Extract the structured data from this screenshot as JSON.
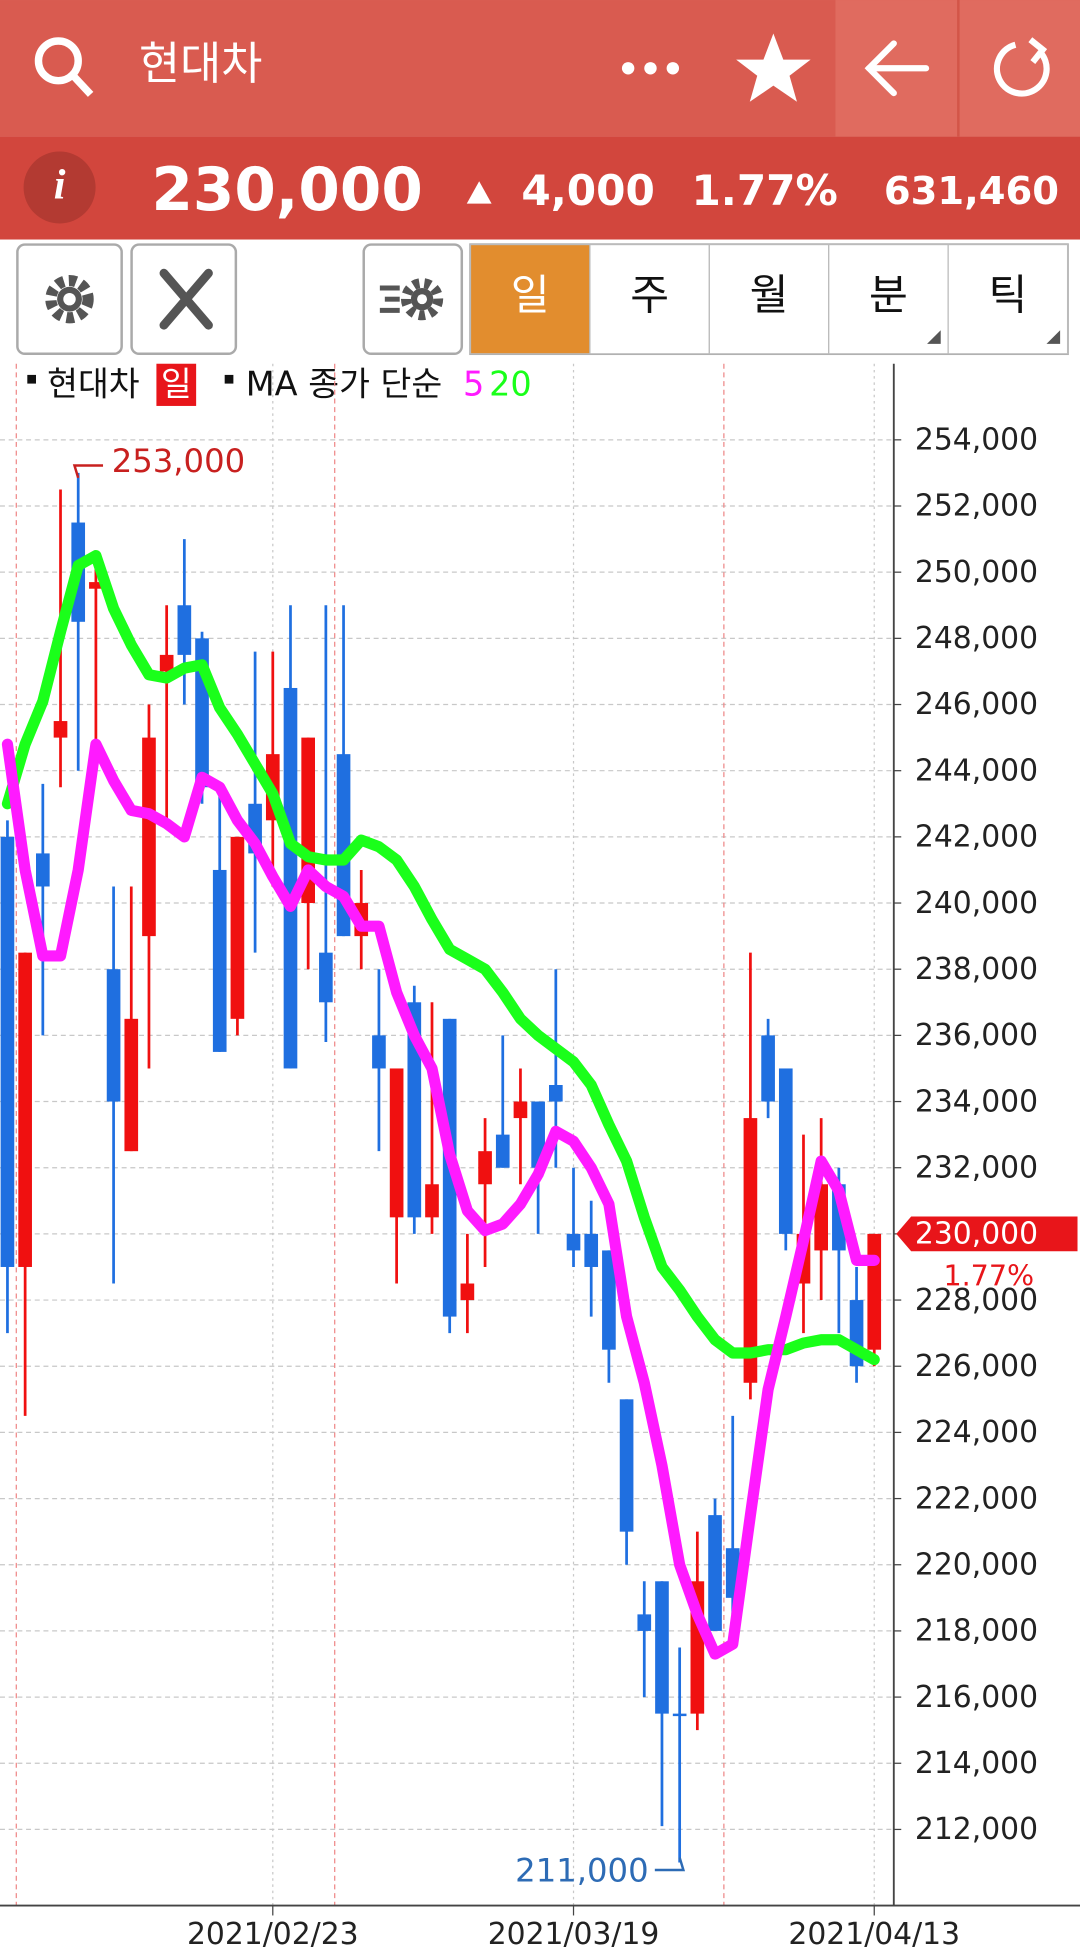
{
  "header": {
    "title": "현대차"
  },
  "quote": {
    "info": "i",
    "price": "230,000",
    "change": "4,000",
    "change_pct": "1.77%",
    "volume": "631,460"
  },
  "tabs": [
    "일",
    "주",
    "월",
    "분",
    "틱"
  ],
  "chart_data": {
    "type": "candlestick",
    "name": "현대차",
    "period_badge": "일",
    "ma_label": "MA 종가 단순",
    "up_color": "#f01010",
    "down_color": "#1f6fe0",
    "categories": [
      null,
      null,
      null,
      null,
      null,
      null,
      null,
      null,
      null,
      null,
      null,
      null,
      null,
      null,
      null,
      "2021/02/23",
      null,
      null,
      null,
      null,
      null,
      null,
      null,
      null,
      null,
      null,
      null,
      null,
      null,
      null,
      null,
      null,
      "2021/03/19",
      null,
      null,
      null,
      null,
      null,
      null,
      null,
      null,
      null,
      null,
      null,
      null,
      null,
      null,
      null,
      null,
      "2021/04/13"
    ],
    "open": [
      242000,
      229000,
      241500,
      245000,
      251500,
      249500,
      238000,
      232500,
      239000,
      247000,
      249000,
      248000,
      241000,
      236500,
      243000,
      242500,
      246500,
      240000,
      238500,
      244500,
      239000,
      236000,
      230500,
      237000,
      230500,
      236500,
      228000,
      231500,
      233000,
      233500,
      234000,
      234500,
      230000,
      230000,
      229500,
      225000,
      218500,
      219500,
      215500,
      215500,
      221500,
      220500,
      225500,
      236000,
      235000,
      228500,
      229500,
      231500,
      228000,
      226500
    ],
    "high": [
      242500,
      238500,
      243600,
      252500,
      253000,
      250600,
      240500,
      240500,
      246000,
      249000,
      251000,
      248200,
      243500,
      242000,
      247600,
      247600,
      249000,
      245000,
      249000,
      249000,
      241000,
      238000,
      235000,
      237500,
      237000,
      236500,
      230000,
      233500,
      236000,
      235000,
      234000,
      238000,
      232000,
      231000,
      229500,
      225000,
      219500,
      219500,
      217500,
      221000,
      222000,
      224500,
      238500,
      236500,
      235000,
      233000,
      233500,
      232000,
      229000,
      230000
    ],
    "low": [
      227000,
      224500,
      236000,
      243500,
      244000,
      244000,
      228500,
      232500,
      235000,
      242500,
      246000,
      243000,
      235500,
      236000,
      238500,
      240500,
      235000,
      238000,
      235800,
      239000,
      238000,
      232500,
      228500,
      230000,
      230000,
      227000,
      227000,
      229000,
      232000,
      231500,
      230000,
      232000,
      229000,
      227500,
      225500,
      220000,
      216000,
      212100,
      211000,
      215000,
      218000,
      218500,
      225000,
      233500,
      229500,
      227000,
      228000,
      227000,
      225500,
      226000
    ],
    "close": [
      229000,
      238500,
      240500,
      245500,
      248500,
      249700,
      234000,
      236500,
      245000,
      247500,
      247500,
      243500,
      235500,
      242000,
      241500,
      244500,
      235000,
      245000,
      237000,
      239000,
      240000,
      235000,
      235000,
      230500,
      231500,
      227500,
      228500,
      232500,
      232000,
      234000,
      232000,
      234000,
      229500,
      229000,
      226500,
      221000,
      218000,
      215500,
      215500,
      219500,
      218000,
      219000,
      233500,
      234000,
      230000,
      230000,
      231500,
      229500,
      226000,
      230000
    ],
    "series": [
      {
        "name": "5",
        "color": "#ff1aff",
        "values": [
          244800,
          241000,
          238400,
          238400,
          241000,
          244800,
          243700,
          242800,
          242700,
          242400,
          242000,
          243800,
          243500,
          242500,
          241800,
          240800,
          239900,
          241000,
          240500,
          240200,
          239300,
          239300,
          237300,
          236000,
          235000,
          232400,
          230700,
          230100,
          230300,
          230900,
          231800,
          233100,
          232800,
          232000,
          230900,
          227500,
          225500,
          223000,
          220000,
          218500,
          217300,
          217600,
          221500,
          225300,
          227500,
          229800,
          232200,
          231300,
          229200,
          229200
        ]
      },
      {
        "name": "20",
        "color": "#1aff1a",
        "values": [
          243000,
          244800,
          246100,
          248200,
          250200,
          250500,
          248900,
          247800,
          246900,
          246800,
          247100,
          247200,
          245900,
          245100,
          244200,
          243300,
          241800,
          241400,
          241300,
          241300,
          241900,
          241700,
          241300,
          240500,
          239500,
          238600,
          238300,
          238000,
          237300,
          236500,
          236000,
          235600,
          235200,
          234500,
          233300,
          232200,
          230500,
          229000,
          228300,
          227500,
          226800,
          226400,
          226400,
          226500,
          226500,
          226700,
          226800,
          226800,
          226500,
          226200
        ]
      }
    ],
    "annotations": [
      {
        "label": "253,000",
        "value": 253000,
        "color": "#c8201f"
      },
      {
        "label": "211,000",
        "value": 211000,
        "color": "#2d6bb5"
      }
    ],
    "ylim": [
      209700,
      256300
    ],
    "yticks": [
      {
        "value": 212000,
        "label": "212,000"
      },
      {
        "value": 214000,
        "label": "214,000"
      },
      {
        "value": 216000,
        "label": "216,000"
      },
      {
        "value": 218000,
        "label": "218,000"
      },
      {
        "value": 220000,
        "label": "220,000"
      },
      {
        "value": 222000,
        "label": "222,000"
      },
      {
        "value": 224000,
        "label": "224,000"
      },
      {
        "value": 226000,
        "label": "226,000"
      },
      {
        "value": 228000,
        "label": "228,000"
      },
      {
        "value": 230000,
        "label": "230,000"
      },
      {
        "value": 232000,
        "label": "232,000"
      },
      {
        "value": 234000,
        "label": "234,000"
      },
      {
        "value": 236000,
        "label": "236,000"
      },
      {
        "value": 238000,
        "label": "238,000"
      },
      {
        "value": 240000,
        "label": "240,000"
      },
      {
        "value": 242000,
        "label": "242,000"
      },
      {
        "value": 244000,
        "label": "244,000"
      },
      {
        "value": 246000,
        "label": "246,000"
      },
      {
        "value": 248000,
        "label": "248,000"
      },
      {
        "value": 250000,
        "label": "250,000"
      },
      {
        "value": 252000,
        "label": "252,000"
      },
      {
        "value": 254000,
        "label": "254,000"
      }
    ],
    "grid": true
  }
}
